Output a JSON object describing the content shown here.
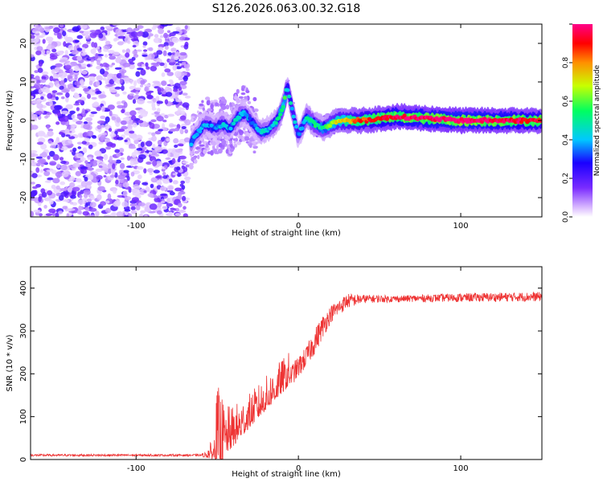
{
  "title": "S126.2026.063.00.32.G18",
  "chart_data": [
    {
      "type": "heatmap",
      "name": "spectrogram",
      "xlabel": "Height of straight line (km)",
      "ylabel": "Frequency (Hz)",
      "xlim": [
        -165,
        150
      ],
      "ylim": [
        -25,
        25
      ],
      "xticks": [
        -100,
        0,
        100
      ],
      "yticks": [
        -20,
        -10,
        0,
        10,
        20
      ],
      "noise_region": [
        -165,
        -68
      ],
      "ridge": {
        "x": [
          -66,
          -62,
          -57,
          -52,
          -47,
          -42,
          -37,
          -33,
          -28,
          -23,
          -18,
          -13,
          -9,
          -7,
          -4,
          0,
          5,
          10,
          15,
          20,
          25,
          30,
          35,
          40,
          60,
          100,
          130,
          150
        ],
        "freq": [
          -6,
          -3,
          -1,
          -2,
          -1,
          -2,
          1,
          2,
          -1,
          -3,
          -2,
          0,
          4,
          9,
          3,
          -4,
          1,
          -1,
          -2,
          -1,
          0,
          0,
          0,
          0,
          1,
          0,
          0,
          0
        ],
        "amplitude": [
          0.35,
          0.3,
          0.35,
          0.3,
          0.4,
          0.3,
          0.45,
          0.35,
          0.3,
          0.4,
          0.35,
          0.45,
          0.55,
          0.4,
          0.4,
          0.3,
          0.45,
          0.5,
          0.45,
          0.6,
          0.7,
          0.75,
          0.8,
          0.85,
          0.95,
          1.0,
          0.95,
          0.9
        ]
      },
      "colorbar": {
        "label": "Normalized spectral amplitude",
        "range": [
          0,
          1
        ],
        "ticks": [
          "0.0",
          "0.2",
          "0.4",
          "0.6",
          "0.8"
        ],
        "colors": [
          "#ffffff",
          "#d9b8ff",
          "#7a2cff",
          "#1a00ff",
          "#00c8ff",
          "#00ff60",
          "#c8ff00",
          "#ff9000",
          "#ff0000",
          "#ff0088"
        ]
      }
    },
    {
      "type": "line",
      "name": "snr",
      "xlabel": "Height of straight line (km)",
      "ylabel": "SNR (10 * v/v)",
      "xlim": [
        -165,
        150
      ],
      "ylim": [
        0,
        450
      ],
      "xticks": [
        -100,
        0,
        100
      ],
      "yticks": [
        0,
        100,
        200,
        300,
        400
      ],
      "color": "#ee3333",
      "envelope": {
        "x": [
          -165,
          -100,
          -60,
          -52,
          -50,
          -45,
          -40,
          -35,
          -30,
          -20,
          -10,
          0,
          5,
          10,
          15,
          20,
          30,
          40,
          60,
          100,
          150
        ],
        "base": [
          10,
          10,
          10,
          12,
          22,
          40,
          55,
          75,
          95,
          135,
          175,
          215,
          240,
          275,
          310,
          340,
          370,
          375,
          375,
          378,
          380
        ],
        "noise": [
          5,
          5,
          5,
          30,
          130,
          70,
          60,
          55,
          50,
          50,
          50,
          50,
          50,
          60,
          55,
          40,
          35,
          20,
          15,
          20,
          22
        ]
      }
    }
  ]
}
